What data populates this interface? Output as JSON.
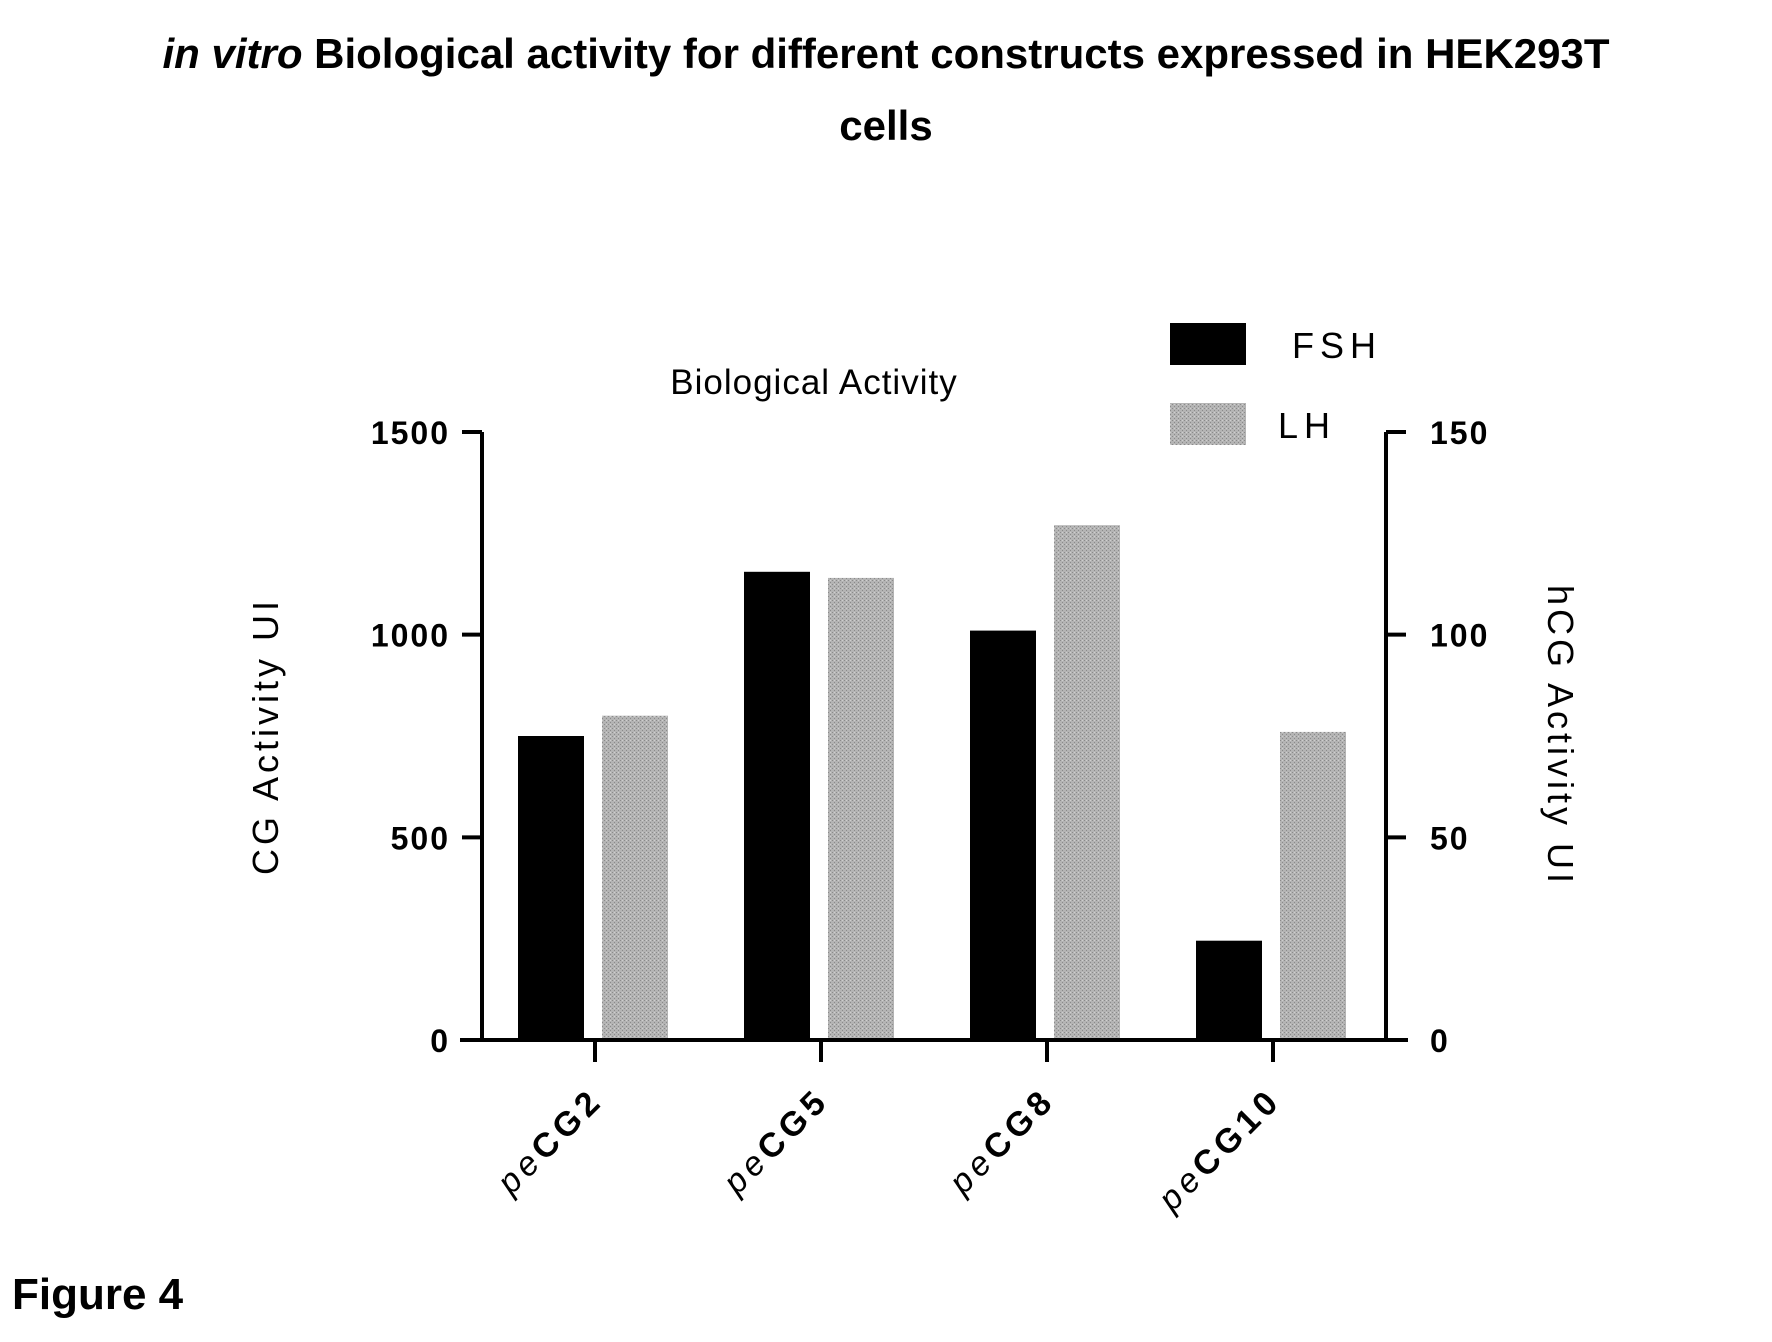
{
  "title": {
    "italic_prefix": "in vitro",
    "line1_rest": " Biological activity for different constructs expressed in HEK293T",
    "line2": "cells"
  },
  "figure_label": "Figure 4",
  "chart_data": {
    "type": "bar",
    "title": "Biological Activity",
    "categories": [
      {
        "prefix": "pe",
        "name": "CG2"
      },
      {
        "prefix": "pe",
        "name": "CG5"
      },
      {
        "prefix": "pe",
        "name": "CG8"
      },
      {
        "prefix": "pe",
        "name": "CG10"
      }
    ],
    "series": [
      {
        "name": "FSH",
        "axis": "left",
        "color": "#000000",
        "values": [
          750,
          1155,
          1010,
          245
        ]
      },
      {
        "name": "LH",
        "axis": "right",
        "color": "#a8a8a8",
        "values": [
          80,
          114,
          127,
          76
        ]
      }
    ],
    "ylabel_left": "CG Activity UI",
    "ylim_left": [
      0,
      1500
    ],
    "yticks_left": [
      "0",
      "500",
      "1000",
      "1500"
    ],
    "ylabel_right": "hCG Activity UI",
    "ylim_right": [
      0,
      150
    ],
    "yticks_right": [
      "0",
      "50",
      "100",
      "150"
    ],
    "grid": false,
    "legend_position": "top-right"
  }
}
